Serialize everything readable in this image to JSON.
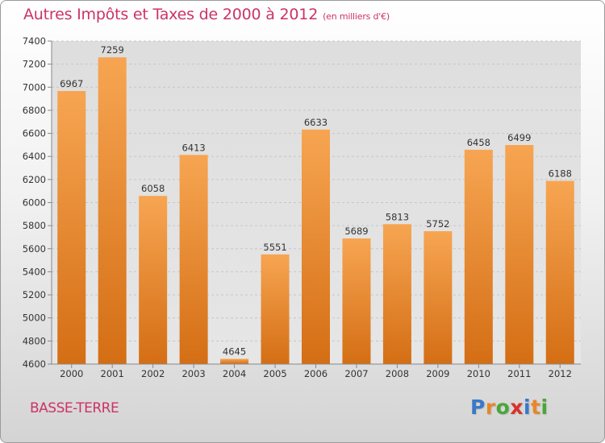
{
  "header": {
    "title": "Autres Impôts et Taxes de 2000 à 2012",
    "unit_note": "(en milliers d'€)"
  },
  "footer": {
    "place": "BASSE-TERRE",
    "logo_text": "Proxiti",
    "logo_colors": [
      "#3a78c8",
      "#e8862a",
      "#4aa63a",
      "#d8322a",
      "#3a78c8",
      "#e8862a",
      "#4aa63a"
    ]
  },
  "colors": {
    "bar_top": "#f7a552",
    "bar_bottom": "#d46e14",
    "title": "#cc3366"
  },
  "chart_data": {
    "type": "bar",
    "title": "Autres Impôts et Taxes de 2000 à 2012",
    "xlabel": "",
    "ylabel": "",
    "categories": [
      "2000",
      "2001",
      "2002",
      "2003",
      "2004",
      "2005",
      "2006",
      "2007",
      "2008",
      "2009",
      "2010",
      "2011",
      "2012"
    ],
    "values": [
      6967,
      7259,
      6058,
      6413,
      4645,
      5551,
      6633,
      5689,
      5813,
      5752,
      6458,
      6499,
      6188
    ],
    "ylim": [
      4600,
      7400
    ],
    "yticks": [
      4600,
      4800,
      5000,
      5200,
      5400,
      5600,
      5800,
      6000,
      6200,
      6400,
      6600,
      6800,
      7000,
      7200,
      7400
    ],
    "grid": true
  }
}
